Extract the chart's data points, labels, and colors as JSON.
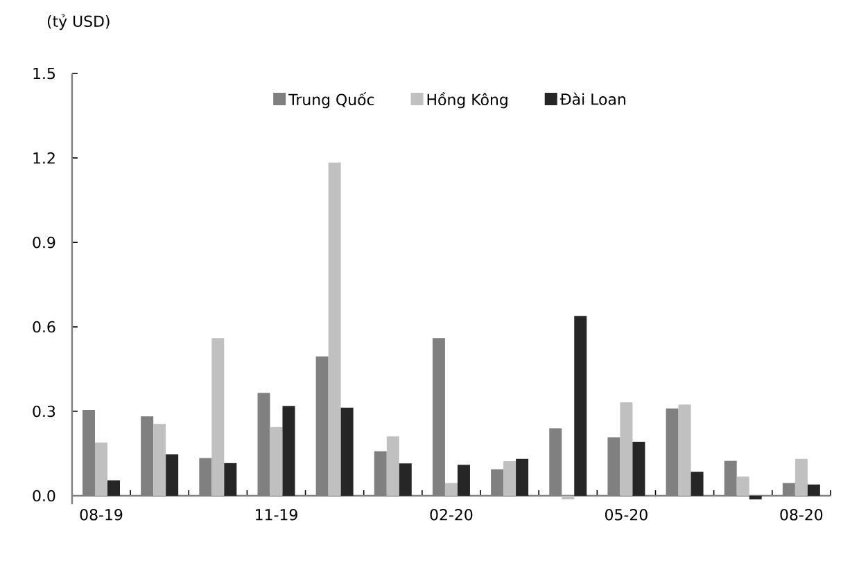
{
  "chart_data": {
    "type": "bar",
    "ylabel": "(tỷ USD)",
    "categories": [
      "08-19",
      null,
      null,
      "11-19",
      null,
      null,
      "02-20",
      null,
      null,
      "05-20",
      null,
      null,
      "08-20"
    ],
    "series": [
      {
        "name": "Trung Quốc",
        "color": "#808080",
        "values": [
          0.305,
          0.282,
          0.134,
          0.365,
          0.495,
          0.158,
          0.56,
          0.094,
          0.24,
          0.208,
          0.31,
          0.124,
          0.045
        ]
      },
      {
        "name": "Hồng Kông",
        "color": "#c0c0c0",
        "values": [
          0.189,
          0.255,
          0.56,
          0.244,
          1.184,
          0.211,
          0.045,
          0.123,
          -0.013,
          0.332,
          0.324,
          0.068,
          0.131
        ]
      },
      {
        "name": "Đài Loan",
        "color": "#262626",
        "values": [
          0.055,
          0.147,
          0.116,
          0.319,
          0.313,
          0.115,
          0.11,
          0.131,
          0.639,
          0.192,
          0.085,
          -0.013,
          0.04
        ]
      }
    ],
    "ylim": [
      -0.03,
      1.5
    ],
    "yticks": [
      {
        "value": 0,
        "label": "0.0"
      },
      0.3,
      0.6,
      0.9,
      1.2,
      1.5
    ],
    "legend": "top",
    "grid": false
  }
}
